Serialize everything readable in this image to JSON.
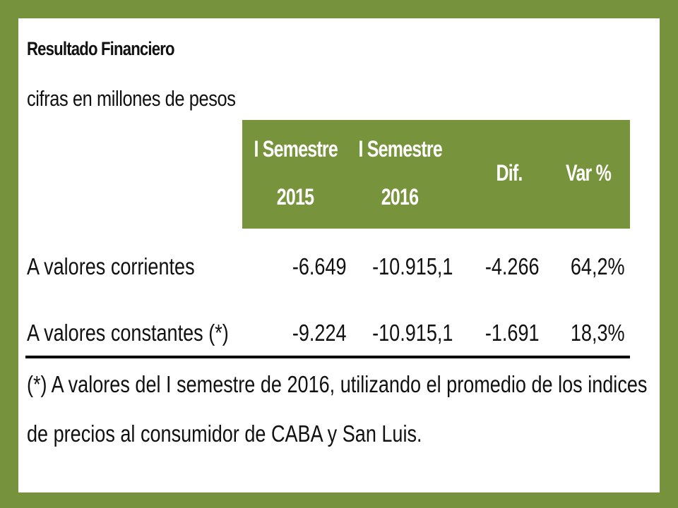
{
  "title": "Resultado Financiero",
  "subtitle": "cifras en millones de pesos",
  "columns": {
    "c1_line1": "I Semestre",
    "c1_line2": "2015",
    "c2_line1": "I Semestre",
    "c2_line2": "2016",
    "c3": "Dif.",
    "c4": "Var %"
  },
  "rows": [
    {
      "label": "A valores corrientes",
      "v2015": "-6.649",
      "v2016": "-10.915,1",
      "dif": "-4.266",
      "var": "64,2%"
    },
    {
      "label": "A valores constantes (*)",
      "v2015": "-9.224",
      "v2016": "-10.915,1",
      "dif": "-1.691",
      "var": "18,3%"
    }
  ],
  "note": {
    "line1": "(*) A valores del I semestre de 2016, utilizando el promedio de los indices",
    "line2": "de precios al consumidor de CABA y San Luis."
  },
  "colors": {
    "border": "#76923c",
    "header_fill": "#77933c",
    "header_text": "#ffffff"
  }
}
